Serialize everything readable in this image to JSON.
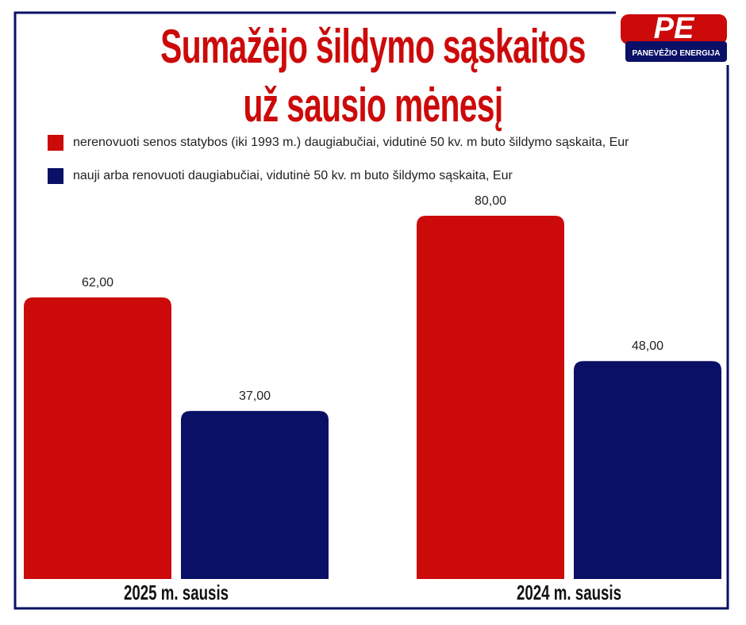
{
  "chart_data": {
    "type": "bar",
    "title": "Sumažėjo šildymo sąskaitos\nuž sausio mėnesį",
    "logo": {
      "letters": "PE",
      "name": "PANEVĖŽIO ENERGIJA"
    },
    "categories": [
      "2025 m. sausis",
      "2024 m. sausis"
    ],
    "series": [
      {
        "name": "nerenovuoti senos statybos (iki 1993 m.) daugiabučiai, vidutinė 50 kv. m buto šildymo sąskaita, Eur",
        "color": "#cc0a0a",
        "values": [
          62,
          80
        ],
        "value_labels": [
          "62,00",
          "80,00"
        ]
      },
      {
        "name": "nauji arba renovuoti daugiabučiai, vidutinė 50 kv. m buto šildymo sąskaita, Eur",
        "color": "#0a1066",
        "values": [
          37,
          48
        ],
        "value_labels": [
          "37,00",
          "48,00"
        ]
      }
    ]
  }
}
